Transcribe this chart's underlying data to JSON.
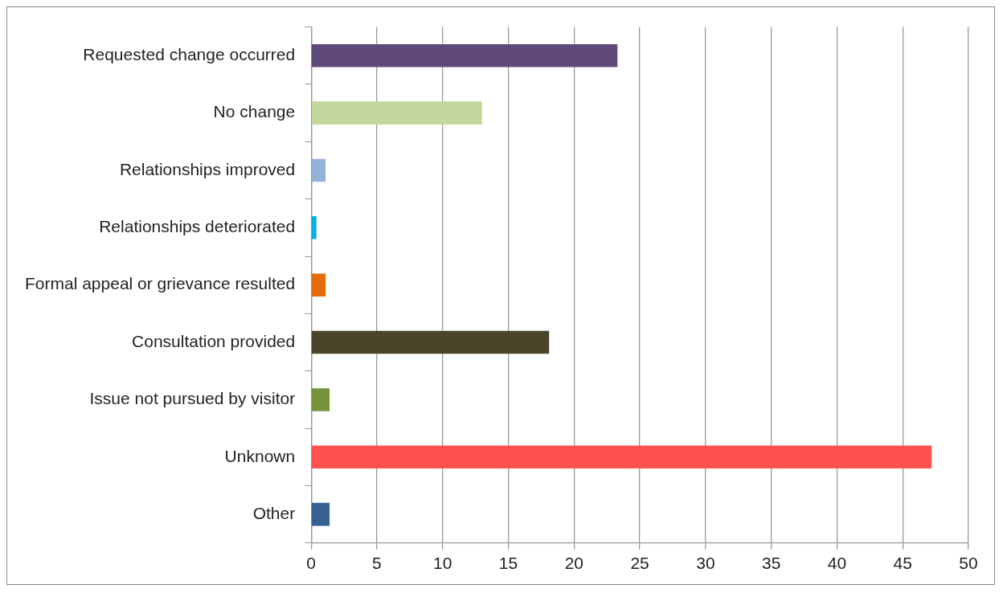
{
  "chart_data": {
    "type": "bar",
    "orientation": "horizontal",
    "categories": [
      "Requested change occurred",
      "No change",
      "Relationships improved",
      "Relationships deteriorated",
      "Formal appeal or grievance resulted",
      "Consultation provided",
      "Issue not pursued by visitor",
      "Unknown",
      "Other"
    ],
    "values": [
      23.3,
      13,
      1.1,
      0.4,
      1.1,
      18.1,
      1.4,
      47.2,
      1.4
    ],
    "colors": [
      "#604a7b",
      "#c3d69b",
      "#95b3d7",
      "#00b0f0",
      "#e46c0a",
      "#4a452a",
      "#77933c",
      "#ff5050",
      "#366092"
    ],
    "xlim": [
      0,
      50
    ],
    "xticks": [
      0,
      5,
      10,
      15,
      20,
      25,
      30,
      35,
      40,
      45,
      50
    ],
    "grid": "x",
    "legend": false
  }
}
